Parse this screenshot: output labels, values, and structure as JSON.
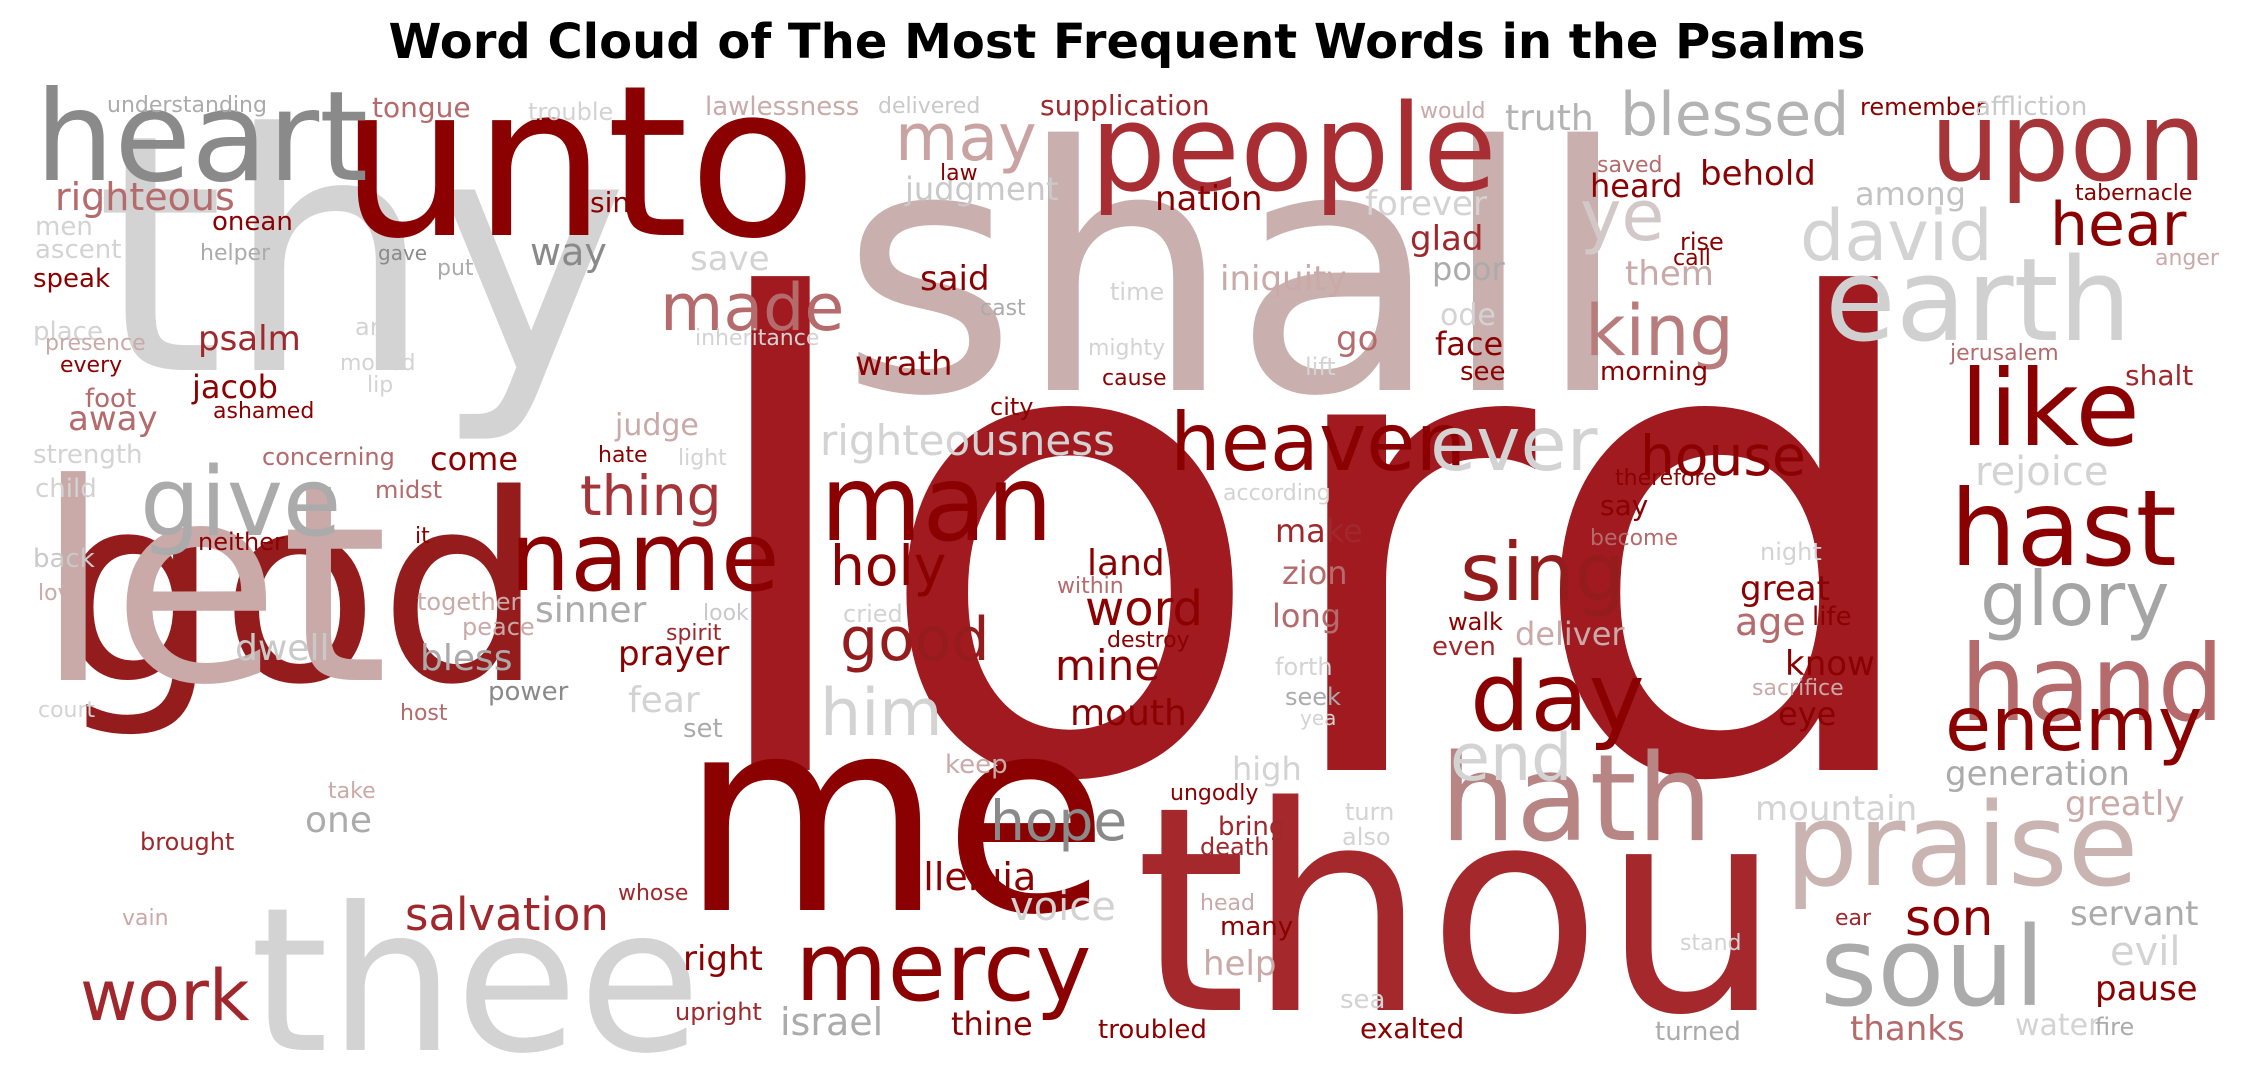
{
  "title": "Word Cloud of The Most Frequent Words in the Psalms",
  "chart_data": {
    "type": "word_cloud",
    "title": "Word Cloud of The Most Frequent Words in the Psalms",
    "colors": {
      "darkest": "#8b0000",
      "dark": "#a0282c",
      "medium": "#b56a6c",
      "dusty": "#c9aaa8",
      "gray_dark": "#8a8a8a",
      "gray": "#ababab",
      "gray_light": "#d3d3d3"
    },
    "words": [
      {
        "text": "lord",
        "color": "#a01a20"
      },
      {
        "text": "shall",
        "color": "#c9b0ae"
      },
      {
        "text": "thy",
        "color": "#d3d3d3"
      },
      {
        "text": "unto",
        "color": "#8b0000"
      },
      {
        "text": "god",
        "color": "#951c1c"
      },
      {
        "text": "thou",
        "color": "#a4282c"
      },
      {
        "text": "me",
        "color": "#8b0000"
      },
      {
        "text": "let",
        "color": "#c9aaa8"
      },
      {
        "text": "thee",
        "color": "#d3d3d3"
      },
      {
        "text": "heart",
        "color": "#8a8a8a"
      },
      {
        "text": "people",
        "color": "#a82e33"
      },
      {
        "text": "upon",
        "color": "#a6353a"
      },
      {
        "text": "earth",
        "color": "#d0d0d0"
      },
      {
        "text": "praise",
        "color": "#c9b4b2"
      },
      {
        "text": "hath",
        "color": "#b78583"
      },
      {
        "text": "soul",
        "color": "#ababab"
      },
      {
        "text": "man",
        "color": "#8b0000"
      },
      {
        "text": "mercy",
        "color": "#8b0000"
      },
      {
        "text": "hand",
        "color": "#b56a6c"
      },
      {
        "text": "hast",
        "color": "#8b0000"
      },
      {
        "text": "like",
        "color": "#8b0000"
      },
      {
        "text": "heaven",
        "color": "#8b0000"
      },
      {
        "text": "name",
        "color": "#8b0000"
      },
      {
        "text": "give",
        "color": "#ababab"
      },
      {
        "text": "day",
        "color": "#8b0000"
      },
      {
        "text": "sing",
        "color": "#951c1c"
      },
      {
        "text": "ever",
        "color": "#d3d3d3"
      },
      {
        "text": "glory",
        "color": "#a5a5a5"
      },
      {
        "text": "enemy",
        "color": "#8b0000"
      },
      {
        "text": "david",
        "color": "#d3d3d3"
      },
      {
        "text": "work",
        "color": "#a0282c"
      },
      {
        "text": "king",
        "color": "#b97c7c"
      },
      {
        "text": "blessed",
        "color": "#b3b3b3"
      },
      {
        "text": "may",
        "color": "#c9a3a2"
      },
      {
        "text": "made",
        "color": "#b56a6c"
      },
      {
        "text": "him",
        "color": "#d3d3d3"
      },
      {
        "text": "good",
        "color": "#951c1c"
      },
      {
        "text": "end",
        "color": "#d3d3d3"
      },
      {
        "text": "ye",
        "color": "#d3c8c8"
      },
      {
        "text": "hear",
        "color": "#8b0000"
      },
      {
        "text": "house",
        "color": "#8b0000"
      },
      {
        "text": "holy",
        "color": "#8b0000"
      },
      {
        "text": "thing",
        "color": "#a6353a"
      },
      {
        "text": "hope",
        "color": "#8a8a8a"
      },
      {
        "text": "son",
        "color": "#8b0000"
      },
      {
        "text": "salvation",
        "color": "#a0282c"
      },
      {
        "text": "righteousness",
        "color": "#d3d3d3"
      },
      {
        "text": "righteous",
        "color": "#b56a6c"
      },
      {
        "text": "israel",
        "color": "#ababab"
      },
      {
        "text": "word",
        "color": "#8b0000"
      },
      {
        "text": "mine",
        "color": "#8b0000"
      },
      {
        "text": "mouth",
        "color": "#8b0000"
      },
      {
        "text": "alleluia",
        "color": "#8b0000"
      },
      {
        "text": "voice",
        "color": "#d3d3d3"
      },
      {
        "text": "rejoice",
        "color": "#d3d3d3"
      },
      {
        "text": "pause",
        "color": "#8b0000"
      },
      {
        "text": "evil",
        "color": "#d3d3d3"
      },
      {
        "text": "servant",
        "color": "#ababab"
      },
      {
        "text": "generation",
        "color": "#ababab"
      },
      {
        "text": "mountain",
        "color": "#d3d3d3"
      },
      {
        "text": "greatly",
        "color": "#c9aaa8"
      },
      {
        "text": "thanks",
        "color": "#b56a6c"
      },
      {
        "text": "water",
        "color": "#d3d3d3"
      },
      {
        "text": "fire",
        "color": "#ababab"
      },
      {
        "text": "truth",
        "color": "#b3b3b3"
      },
      {
        "text": "behold",
        "color": "#8b0000"
      },
      {
        "text": "among",
        "color": "#c2c2c2"
      },
      {
        "text": "tabernacle",
        "color": "#8b0000"
      },
      {
        "text": "anger",
        "color": "#c9aaa8"
      },
      {
        "text": "remember",
        "color": "#8b0000"
      },
      {
        "text": "affliction",
        "color": "#c9c9c9"
      },
      {
        "text": "would",
        "color": "#c9aaa8"
      },
      {
        "text": "saved",
        "color": "#b56a6c"
      },
      {
        "text": "heard",
        "color": "#8b0000"
      },
      {
        "text": "rise",
        "color": "#8b0000"
      },
      {
        "text": "call",
        "color": "#8b0000"
      },
      {
        "text": "them",
        "color": "#c9aaa8"
      },
      {
        "text": "forever",
        "color": "#d3d3d3"
      },
      {
        "text": "glad",
        "color": "#a0282c"
      },
      {
        "text": "poor",
        "color": "#ababab"
      },
      {
        "text": "ode",
        "color": "#d3d3d3"
      },
      {
        "text": "face",
        "color": "#8b0000"
      },
      {
        "text": "see",
        "color": "#8b0000"
      },
      {
        "text": "morning",
        "color": "#8b0000"
      },
      {
        "text": "jerusalem",
        "color": "#b56a6c"
      },
      {
        "text": "shalt",
        "color": "#a0282c"
      },
      {
        "text": "therefore",
        "color": "#8b0000"
      },
      {
        "text": "say",
        "color": "#8b0000"
      },
      {
        "text": "become",
        "color": "#b56a6c"
      },
      {
        "text": "night",
        "color": "#d3d3d3"
      },
      {
        "text": "great",
        "color": "#8b0000"
      },
      {
        "text": "age",
        "color": "#b56a6c"
      },
      {
        "text": "life",
        "color": "#8b0000"
      },
      {
        "text": "know",
        "color": "#8b0000"
      },
      {
        "text": "sacrifice",
        "color": "#c9aaa8"
      },
      {
        "text": "eye",
        "color": "#8b0000"
      },
      {
        "text": "walk",
        "color": "#8b0000"
      },
      {
        "text": "even",
        "color": "#a0282c"
      },
      {
        "text": "deliver",
        "color": "#c9aaa8"
      },
      {
        "text": "nation",
        "color": "#8b0000"
      },
      {
        "text": "iniquity",
        "color": "#c9aaa8"
      },
      {
        "text": "go",
        "color": "#b56a6c"
      },
      {
        "text": "lift",
        "color": "#d3d3d3"
      },
      {
        "text": "time",
        "color": "#d3d3d3"
      },
      {
        "text": "cast",
        "color": "#ababab"
      },
      {
        "text": "mighty",
        "color": "#d3d3d3"
      },
      {
        "text": "cause",
        "color": "#8b0000"
      },
      {
        "text": "city",
        "color": "#8b0000"
      },
      {
        "text": "wrath",
        "color": "#8b0000"
      },
      {
        "text": "said",
        "color": "#8b0000"
      },
      {
        "text": "save",
        "color": "#d3d3d3"
      },
      {
        "text": "inheritance",
        "color": "#d3d3d3"
      },
      {
        "text": "judgment",
        "color": "#c9c9c9"
      },
      {
        "text": "law",
        "color": "#8b0000"
      },
      {
        "text": "supplication",
        "color": "#a0282c"
      },
      {
        "text": "lawlessness",
        "color": "#c9aaa8"
      },
      {
        "text": "delivered",
        "color": "#c9c9c9"
      },
      {
        "text": "trouble",
        "color": "#d3d3d3"
      },
      {
        "text": "tongue",
        "color": "#b56a6c"
      },
      {
        "text": "understanding",
        "color": "#ababab"
      },
      {
        "text": "sin",
        "color": "#8b0000"
      },
      {
        "text": "onean",
        "color": "#8b0000"
      },
      {
        "text": "men",
        "color": "#d3d3d3"
      },
      {
        "text": "ascent",
        "color": "#d3d3d3"
      },
      {
        "text": "helper",
        "color": "#ababab"
      },
      {
        "text": "speak",
        "color": "#8b0000"
      },
      {
        "text": "gave",
        "color": "#8a8a8a"
      },
      {
        "text": "put",
        "color": "#ababab"
      },
      {
        "text": "way",
        "color": "#8a8a8a"
      },
      {
        "text": "place",
        "color": "#d3d3d3"
      },
      {
        "text": "presence",
        "color": "#c9aaa8"
      },
      {
        "text": "every",
        "color": "#8b0000"
      },
      {
        "text": "art",
        "color": "#d3d3d3"
      },
      {
        "text": "psalm",
        "color": "#a0282c"
      },
      {
        "text": "moved",
        "color": "#d3d3d3"
      },
      {
        "text": "lip",
        "color": "#d3d3d3"
      },
      {
        "text": "foot",
        "color": "#b56a6c"
      },
      {
        "text": "jacob",
        "color": "#8b0000"
      },
      {
        "text": "ashamed",
        "color": "#8b0000"
      },
      {
        "text": "away",
        "color": "#b56a6c"
      },
      {
        "text": "strength",
        "color": "#d3d3d3"
      },
      {
        "text": "concerning",
        "color": "#b56a6c"
      },
      {
        "text": "come",
        "color": "#8b0000"
      },
      {
        "text": "judge",
        "color": "#c9aaa8"
      },
      {
        "text": "hate",
        "color": "#8b0000"
      },
      {
        "text": "light",
        "color": "#d3d3d3"
      },
      {
        "text": "child",
        "color": "#d3d3d3"
      },
      {
        "text": "midst",
        "color": "#b56a6c"
      },
      {
        "text": "neither",
        "color": "#8b0000"
      },
      {
        "text": "back",
        "color": "#c9c9c9"
      },
      {
        "text": "it",
        "color": "#8b0000"
      },
      {
        "text": "love",
        "color": "#c9aaa8"
      },
      {
        "text": "together",
        "color": "#c9aaa8"
      },
      {
        "text": "sinner",
        "color": "#ababab"
      },
      {
        "text": "look",
        "color": "#c9c9c9"
      },
      {
        "text": "peace",
        "color": "#c9aaa8"
      },
      {
        "text": "spirit",
        "color": "#a0282c"
      },
      {
        "text": "cried",
        "color": "#d3d3d3"
      },
      {
        "text": "dwell",
        "color": "#c9c9c9"
      },
      {
        "text": "bless",
        "color": "#ababab"
      },
      {
        "text": "prayer",
        "color": "#8b0000"
      },
      {
        "text": "fear",
        "color": "#d3d3d3"
      },
      {
        "text": "power",
        "color": "#8a8a8a"
      },
      {
        "text": "court",
        "color": "#d3d3d3"
      },
      {
        "text": "host",
        "color": "#b56a6c"
      },
      {
        "text": "set",
        "color": "#ababab"
      },
      {
        "text": "keep",
        "color": "#c9aaa8"
      },
      {
        "text": "take",
        "color": "#c9aaa8"
      },
      {
        "text": "one",
        "color": "#ababab"
      },
      {
        "text": "brought",
        "color": "#a0282c"
      },
      {
        "text": "land",
        "color": "#8b0000"
      },
      {
        "text": "within",
        "color": "#b56a6c"
      },
      {
        "text": "destroy",
        "color": "#8b0000"
      },
      {
        "text": "make",
        "color": "#a0282c"
      },
      {
        "text": "zion",
        "color": "#b56a6c"
      },
      {
        "text": "long",
        "color": "#b56a6c"
      },
      {
        "text": "according",
        "color": "#d3d3d3"
      },
      {
        "text": "forth",
        "color": "#d3d3d3"
      },
      {
        "text": "seek",
        "color": "#ababab"
      },
      {
        "text": "yea",
        "color": "#d3d3d3"
      },
      {
        "text": "high",
        "color": "#d3d3d3"
      },
      {
        "text": "ungodly",
        "color": "#8b0000"
      },
      {
        "text": "bring",
        "color": "#a0282c"
      },
      {
        "text": "death",
        "color": "#a0282c"
      },
      {
        "text": "turn",
        "color": "#d3d3d3"
      },
      {
        "text": "also",
        "color": "#d3d3d3"
      },
      {
        "text": "head",
        "color": "#c9aaa8"
      },
      {
        "text": "many",
        "color": "#8b0000"
      },
      {
        "text": "help",
        "color": "#c9aaa8"
      },
      {
        "text": "sea",
        "color": "#d3d3d3"
      },
      {
        "text": "exalted",
        "color": "#8b0000"
      },
      {
        "text": "stand",
        "color": "#d3d3d3"
      },
      {
        "text": "ear",
        "color": "#a0282c"
      },
      {
        "text": "turned",
        "color": "#ababab"
      },
      {
        "text": "right",
        "color": "#8b0000"
      },
      {
        "text": "whose",
        "color": "#a0282c"
      },
      {
        "text": "upright",
        "color": "#a0282c"
      },
      {
        "text": "thine",
        "color": "#8b0000"
      },
      {
        "text": "troubled",
        "color": "#8b0000"
      },
      {
        "text": "vain",
        "color": "#c9aaa8"
      }
    ]
  }
}
